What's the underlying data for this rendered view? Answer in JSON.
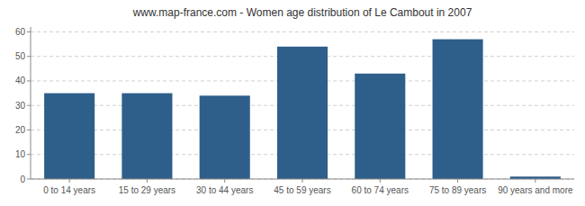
{
  "chart_data": {
    "type": "bar",
    "title": "www.map-france.com - Women age distribution of Le Cambout in 2007",
    "categories": [
      "0 to 14 years",
      "15 to 29 years",
      "30 to 44 years",
      "45 to 59 years",
      "60 to 74 years",
      "75 to 89 years",
      "90 years and more"
    ],
    "values": [
      35,
      35,
      34,
      54,
      43,
      57,
      1
    ],
    "color": "#2e5f8a",
    "ylim": [
      0,
      62
    ],
    "yticks": [
      0,
      10,
      20,
      30,
      40,
      50,
      60
    ],
    "grid": true
  }
}
